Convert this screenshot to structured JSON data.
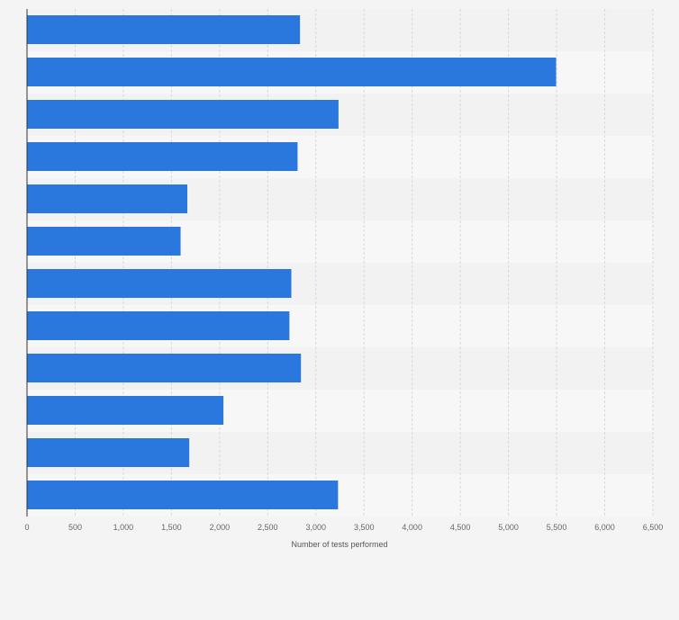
{
  "chart_data": {
    "type": "bar",
    "orientation": "horizontal",
    "categories": [
      "",
      "",
      "",
      "",
      "",
      "",
      "",
      "",
      "",
      "",
      "",
      ""
    ],
    "values": [
      2835,
      5495,
      3235,
      2810,
      1665,
      1595,
      2745,
      2725,
      2845,
      2040,
      1685,
      3230
    ],
    "title": "",
    "xlabel": "Number of tests performed",
    "ylabel": "",
    "xlim": [
      0,
      6500
    ],
    "ticks": [
      0,
      500,
      1000,
      1500,
      2000,
      2500,
      3000,
      3500,
      4000,
      4500,
      5000,
      5500,
      6000,
      6500
    ],
    "tick_labels": [
      "0",
      "500",
      "1,000",
      "1,500",
      "2,000",
      "2,500",
      "3,000",
      "3,500",
      "4,000",
      "4,500",
      "5,000",
      "5,500",
      "6,000",
      "6,500"
    ],
    "grid": true,
    "legend": "none",
    "colors": {
      "bar": "#2a77de",
      "band_dark": "#f2f2f3",
      "band_light": "#f7f7f8",
      "grid": "#d9d9d9",
      "axis": "#333333"
    }
  }
}
